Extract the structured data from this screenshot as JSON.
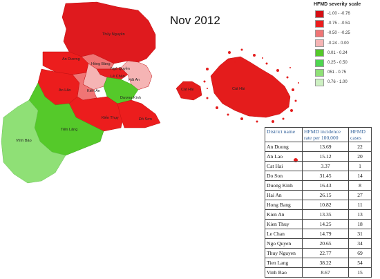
{
  "title": "Nov 2012",
  "legend": {
    "title": "HFMD severity scale",
    "items": [
      {
        "label": "-1.00 - -0.76",
        "color": "#d50f14"
      },
      {
        "label": "-0.75 - -0.51",
        "color": "#ec1d1d"
      },
      {
        "label": "-0.50 - -0.25",
        "color": "#f07575"
      },
      {
        "label": "-0.24 - 0.00",
        "color": "#f5b4b4"
      },
      {
        "label": "0.01 - 0.24",
        "color": "#55c92a"
      },
      {
        "label": "0.25 - 0.50",
        "color": "#4fd650"
      },
      {
        "label": "051 - 0.75",
        "color": "#8fe076"
      },
      {
        "label": "0.76 - 1.00",
        "color": "#cdf0c2"
      }
    ]
  },
  "districts": {
    "thuy_nguyen": "Thủy Nguyên",
    "an_duong": "An Dương",
    "hong_bang": "Hồng Bàng",
    "ngo_quyen": "Ngô Quyền",
    "le_chan": "Lê Chân",
    "hai_an": "Hải An",
    "an_lao": "An Lão",
    "kien_an": "Kiến An",
    "duong_kinh": "Dương Kinh",
    "kien_thuy": "Kiến Thụy",
    "do_son": "Đồ Sơn",
    "tien_lang": "Tiên Lãng",
    "vinh_bao": "Vĩnh Bảo",
    "cat_hai": "Cát Hải",
    "cat_hai_2": "Cát Hải"
  },
  "table": {
    "headers": [
      "District name",
      "HFMD incidence rate per 100,000",
      "HFMD cases"
    ],
    "rows": [
      {
        "district": "An Duong",
        "rate": "13.69",
        "cases": "22"
      },
      {
        "district": "An Lao",
        "rate": "15.12",
        "cases": "20"
      },
      {
        "district": "Cat Hai",
        "rate": "3.37",
        "cases": "1"
      },
      {
        "district": "Do Son",
        "rate": "31.45",
        "cases": "14"
      },
      {
        "district": "Duong Kinh",
        "rate": "16.43",
        "cases": "8"
      },
      {
        "district": "Hai An",
        "rate": "26.15",
        "cases": "27"
      },
      {
        "district": "Hong Bang",
        "rate": "10.82",
        "cases": "11"
      },
      {
        "district": "Kien An",
        "rate": "13.35",
        "cases": "13"
      },
      {
        "district": "Kien Thuy",
        "rate": "14.25",
        "cases": "18"
      },
      {
        "district": "Le Chan",
        "rate": "14.79",
        "cases": "31"
      },
      {
        "district": "Ngo Quyen",
        "rate": "20.65",
        "cases": "34"
      },
      {
        "district": "Thuy Nguyen",
        "rate": "22.77",
        "cases": "69"
      },
      {
        "district": "Tien Lang",
        "rate": "38.22",
        "cases": "54"
      },
      {
        "district": "Vinh Bao",
        "rate": "8.67",
        "cases": "15"
      }
    ]
  }
}
